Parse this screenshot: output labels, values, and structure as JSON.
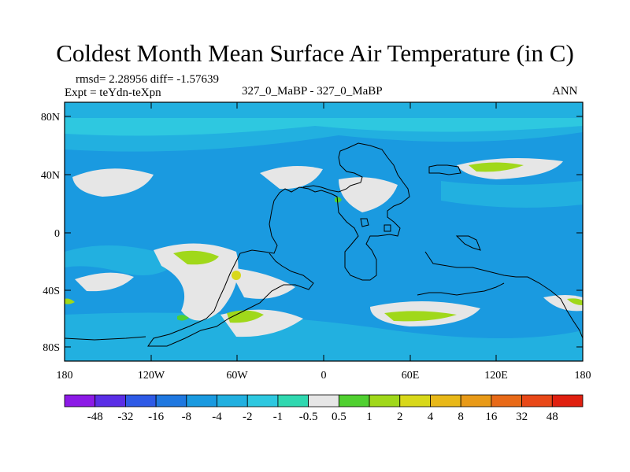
{
  "title": "Coldest Month Mean Surface Air Temperature (in C)",
  "stats": "rmsd= 2.28956 diff= -1.57639",
  "experiment": "Expt = teYdn-teXpn",
  "center_label": "327_0_MaBP - 327_0_MaBP",
  "season": "ANN",
  "lat_labels": [
    "80N",
    "40N",
    "0",
    "40S",
    "80S"
  ],
  "lon_labels": [
    "180",
    "120W",
    "60W",
    "0",
    "60E",
    "120E",
    "180"
  ],
  "colorbar": {
    "labels": [
      "-48",
      "-32",
      "-16",
      "-8",
      "-4",
      "-2",
      "-1",
      "-0.5",
      "0.5",
      "1",
      "2",
      "4",
      "8",
      "16",
      "32",
      "48"
    ],
    "colors": [
      "#8c1ae6",
      "#5a2ee6",
      "#2e5ae6",
      "#1f78e0",
      "#1a9ae0",
      "#22b0e0",
      "#2ec8e0",
      "#30d8b0",
      "#e6e6e6",
      "#50d030",
      "#a0d81a",
      "#d8d81a",
      "#e8b818",
      "#e89a18",
      "#e86a18",
      "#e84818",
      "#e02010"
    ]
  },
  "legend_bins": [
    "< -48",
    "-48 to -32",
    "-32 to -16",
    "-16 to -8",
    "-8 to -4",
    "-4 to -2",
    "-2 to -1",
    "-1 to -0.5",
    "-0.5 to 0.5",
    "0.5 to 1",
    "1 to 2",
    "2 to 4",
    "4 to 8",
    "8 to 16",
    "16 to 32",
    "32 to 48",
    "> 48"
  ]
}
